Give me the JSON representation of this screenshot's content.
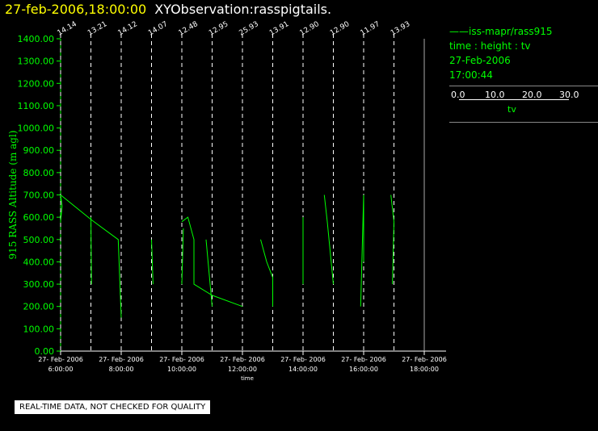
{
  "header": {
    "timestamp": "27-feb-2006,18:00:00",
    "observation": "XYObservation:rasspigtails."
  },
  "legend": {
    "source": "iss-mapr/rass915",
    "var_line": "time : height : tv",
    "date": "27-Feb-2006",
    "time": "17:00:44",
    "scale_ticks": [
      "0.0",
      "10.0",
      "20.0",
      "30.0"
    ],
    "scale_label": "tv"
  },
  "disclaimer": "REAL-TIME DATA, NOT CHECKED FOR QUALITY",
  "chart_data": {
    "type": "line",
    "ylabel": "915 RASS Altitude (m agl)",
    "xlabel": "time",
    "ylim": [
      0,
      1400
    ],
    "xlim": [
      6,
      18
    ],
    "yticks": [
      "0.00",
      "100.00",
      "200.00",
      "300.00",
      "400.00",
      "500.00",
      "600.00",
      "700.00",
      "800.00",
      "900.00",
      "1000.00",
      "1100.00",
      "1200.00",
      "1300.00",
      "1400.00"
    ],
    "xticks": [
      {
        "date": "27- Feb- 2006",
        "time": "6:00:00",
        "x": 6
      },
      {
        "date": "27- Feb- 2006",
        "time": "8:00:00",
        "x": 8
      },
      {
        "date": "27- Feb- 2006",
        "time": "10:00:00",
        "x": 10
      },
      {
        "date": "27- Feb- 2006",
        "time": "12:00:00",
        "x": 12
      },
      {
        "date": "27- Feb- 2006",
        "time": "14:00:00",
        "x": 14
      },
      {
        "date": "27- Feb- 2006",
        "time": "16:00:00",
        "x": 16
      },
      {
        "date": "27- Feb- 2006",
        "time": "18:00:00",
        "x": 18
      }
    ],
    "profiles": [
      {
        "x": 6.0,
        "label": "14.14"
      },
      {
        "x": 7.0,
        "label": "13.21"
      },
      {
        "x": 8.0,
        "label": "14.12"
      },
      {
        "x": 9.0,
        "label": "14.07"
      },
      {
        "x": 10.0,
        "label": "12.48"
      },
      {
        "x": 11.0,
        "label": "12.95"
      },
      {
        "x": 12.0,
        "label": "25.93"
      },
      {
        "x": 13.0,
        "label": "13.91"
      },
      {
        "x": 14.0,
        "label": "12.90"
      },
      {
        "x": 15.0,
        "label": "12.90"
      },
      {
        "x": 16.0,
        "label": "11.97"
      },
      {
        "x": 17.0,
        "label": "13.93"
      }
    ],
    "series": [
      {
        "points": [
          [
            6.0,
            700
          ],
          [
            6.05,
            650
          ],
          [
            6.0,
            580
          ]
        ]
      },
      {
        "points": [
          [
            6.0,
            700
          ],
          [
            7.0,
            590
          ],
          [
            7.9,
            500
          ],
          [
            8.0,
            150
          ]
        ]
      },
      {
        "points": [
          [
            7.0,
            600
          ],
          [
            7.02,
            300
          ]
        ]
      },
      {
        "points": [
          [
            9.0,
            500
          ],
          [
            9.05,
            300
          ]
        ]
      },
      {
        "points": [
          [
            10.0,
            580
          ],
          [
            10.2,
            600
          ],
          [
            10.4,
            500
          ],
          [
            10.4,
            300
          ],
          [
            11.0,
            250
          ],
          [
            12.0,
            200
          ]
        ]
      },
      {
        "points": [
          [
            10.0,
            300
          ],
          [
            10.05,
            550
          ]
        ]
      },
      {
        "points": [
          [
            10.8,
            500
          ],
          [
            11.0,
            200
          ]
        ]
      },
      {
        "points": [
          [
            12.6,
            500
          ],
          [
            12.8,
            400
          ],
          [
            13.0,
            330
          ],
          [
            13.0,
            200
          ]
        ]
      },
      {
        "points": [
          [
            14.0,
            600
          ],
          [
            14.0,
            300
          ]
        ]
      },
      {
        "points": [
          [
            14.7,
            700
          ],
          [
            14.8,
            580
          ],
          [
            15.0,
            300
          ]
        ]
      },
      {
        "points": [
          [
            15.9,
            200
          ],
          [
            16.0,
            700
          ],
          [
            16.0,
            400
          ]
        ]
      },
      {
        "points": [
          [
            16.9,
            700
          ],
          [
            17.0,
            580
          ],
          [
            16.95,
            300
          ]
        ]
      }
    ]
  }
}
